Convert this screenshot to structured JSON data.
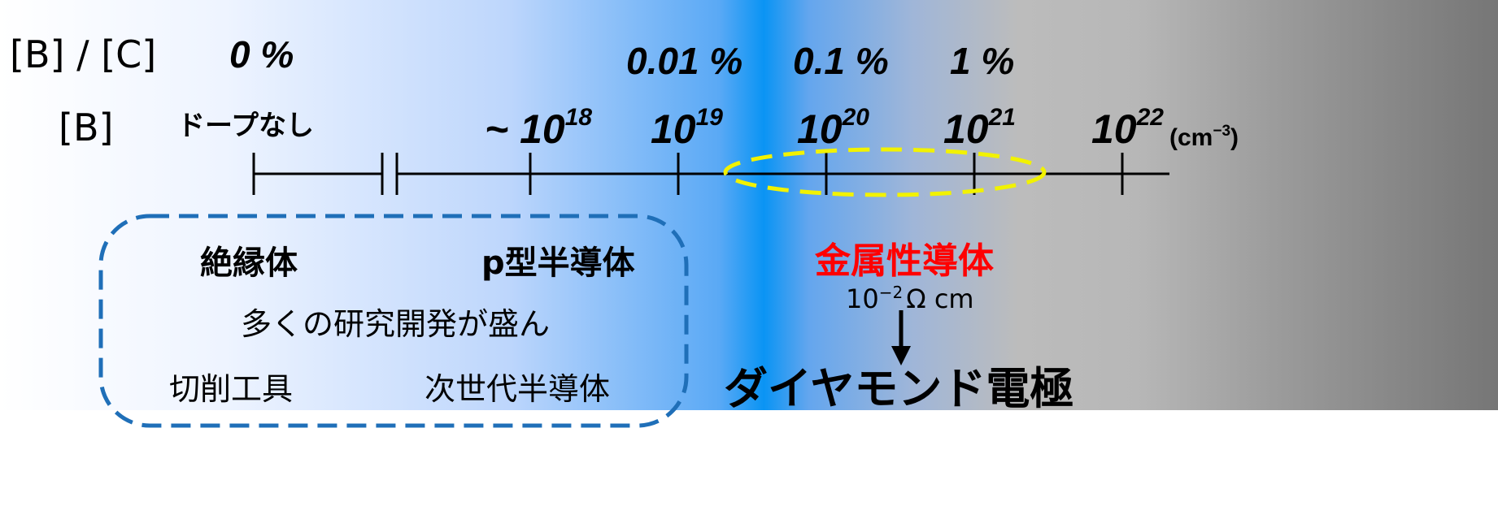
{
  "header": {
    "ratio_label": "[B] / [C]",
    "conc_label": "[B]"
  },
  "percent_marks": [
    "0 %",
    "0.01 %",
    "0.1 %",
    "1 %"
  ],
  "concentration": {
    "undoped": "ドープなし",
    "approx_prefix": "~ 10",
    "approx_exp": "18",
    "base": "10",
    "exps": [
      "19",
      "20",
      "21",
      "22"
    ],
    "unit_base": "(cm",
    "unit_exp": "−3",
    "unit_close": ")"
  },
  "regions": {
    "insulator": "絶縁体",
    "p_type": "p型半導体",
    "metallic": "金属性導体",
    "resistivity_base": "10",
    "resistivity_exp": "−2",
    "resistivity_unit": "Ω cm",
    "research_note": "多くの研究開発が盛ん",
    "cutting_tools": "切削工具",
    "next_gen": "次世代半導体",
    "electrode": "ダイヤモンド電極"
  },
  "colors": {
    "axis": "#000000",
    "dashed_box": "#1f6fb8",
    "highlight_ellipse": "#f2f200",
    "metallic_text": "#ff0000",
    "arrow": "#000000"
  }
}
